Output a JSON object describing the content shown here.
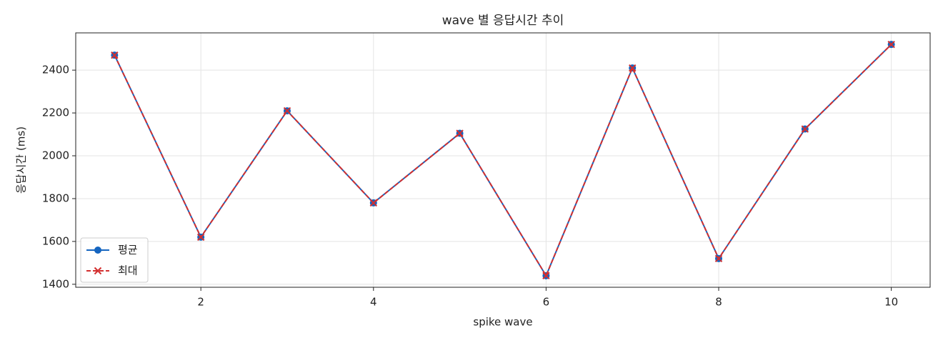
{
  "chart_data": {
    "type": "line",
    "title": "wave 별 응답시간 추이",
    "x_label": "spike wave",
    "y_label": "응답시간 (ms)",
    "x": [
      1,
      2,
      3,
      4,
      5,
      6,
      7,
      8,
      9,
      10
    ],
    "series": [
      {
        "name": "평균",
        "color": "#1565c0",
        "marker": "circle",
        "dash": "solid",
        "values": [
          2470,
          1620,
          2210,
          1780,
          2105,
          1440,
          2410,
          1520,
          2125,
          2520
        ]
      },
      {
        "name": "최대",
        "color": "#d32f2f",
        "marker": "x",
        "dash": "dashed",
        "values": [
          2470,
          1620,
          2210,
          1780,
          2105,
          1440,
          2410,
          1520,
          2125,
          2520
        ]
      }
    ],
    "xlim": [
      0.55,
      10.45
    ],
    "xticks": [
      2,
      4,
      6,
      8,
      10
    ],
    "ylim": [
      1386,
      2574
    ],
    "yticks": [
      1400,
      1600,
      1800,
      2000,
      2200,
      2400
    ],
    "grid": true,
    "legend": "lower left"
  }
}
